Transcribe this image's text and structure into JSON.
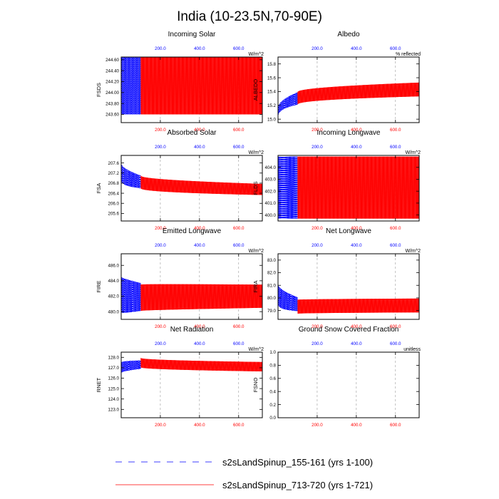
{
  "figure": {
    "title": "India (10-23.5N,70-90E)",
    "colors": {
      "series_a": "#0000ff",
      "series_b": "#ff0000",
      "axis": "#000000",
      "grid": "#999999"
    },
    "top_axis_ticks": [
      "200.0",
      "400.0",
      "600.0"
    ],
    "bottom_axis_ticks": [
      "200.0",
      "400.0",
      "600.0"
    ]
  },
  "legend": [
    {
      "label": "s2sLandSpinup_155-161 (yrs 1-100)",
      "color": "#0000ff",
      "style": "dashed"
    },
    {
      "label": "s2sLandSpinup_713-720 (yrs 1-721)",
      "color": "#ff0000",
      "style": "solid"
    }
  ],
  "chart_data": [
    {
      "type": "line",
      "id": "fsds",
      "title": "Incoming Solar",
      "ylabel": "FSDS",
      "units": "W/m^2",
      "xlim": [
        0,
        721
      ],
      "ylim": [
        243.45,
        244.65
      ],
      "yticks": [
        "244.60",
        "244.40",
        "244.20",
        "244.00",
        "243.80",
        "243.60"
      ],
      "series": [
        {
          "name": "s2sLandSpinup_155-161 (yrs 1-100)",
          "x_range": [
            1,
            100
          ],
          "mean": [
            244.15,
            244.15
          ],
          "amplitude": [
            0.55,
            0.55
          ]
        },
        {
          "name": "s2sLandSpinup_713-720 (yrs 1-721)",
          "x_range": [
            100,
            721
          ],
          "mean": [
            244.15,
            244.15
          ],
          "amplitude": [
            0.55,
            0.55
          ]
        }
      ]
    },
    {
      "type": "line",
      "id": "albedo",
      "title": "Albedo",
      "ylabel": "ALBEDO",
      "units": "% reflected",
      "xlim": [
        0,
        721
      ],
      "ylim": [
        14.95,
        15.9
      ],
      "yticks": [
        "15.8",
        "15.6",
        "15.4",
        "15.2",
        "15.0"
      ],
      "series": [
        {
          "name": "s2sLandSpinup_155-161 (yrs 1-100)",
          "x_range": [
            1,
            100
          ],
          "mean": [
            15.1,
            15.3
          ],
          "amplitude": [
            0.06,
            0.09
          ]
        },
        {
          "name": "s2sLandSpinup_713-720 (yrs 1-721)",
          "x_range": [
            100,
            721
          ],
          "mean": [
            15.3,
            15.43
          ],
          "amplitude": [
            0.09,
            0.1
          ]
        }
      ]
    },
    {
      "type": "line",
      "id": "fsa",
      "title": "Absorbed Solar",
      "ylabel": "FSA",
      "units": "W/m^2",
      "xlim": [
        0,
        721
      ],
      "ylim": [
        205.3,
        207.9
      ],
      "yticks": [
        "207.6",
        "207.2",
        "206.8",
        "206.4",
        "206.0",
        "205.6"
      ],
      "series": [
        {
          "name": "s2sLandSpinup_155-161 (yrs 1-100)",
          "x_range": [
            1,
            100
          ],
          "mean": [
            207.25,
            206.85
          ],
          "amplitude": [
            0.35,
            0.25
          ]
        },
        {
          "name": "s2sLandSpinup_713-720 (yrs 1-721)",
          "x_range": [
            100,
            721
          ],
          "mean": [
            206.85,
            206.55
          ],
          "amplitude": [
            0.25,
            0.22
          ]
        }
      ]
    },
    {
      "type": "line",
      "id": "flds",
      "title": "Incoming Longwave",
      "ylabel": "FLDS",
      "units": "W/m^2",
      "xlim": [
        0,
        721
      ],
      "ylim": [
        399.5,
        405.0
      ],
      "yticks": [
        "404.0",
        "403.0",
        "402.0",
        "401.0",
        "400.0"
      ],
      "series": [
        {
          "name": "s2sLandSpinup_155-161 (yrs 1-100)",
          "x_range": [
            1,
            100
          ],
          "mean": [
            402.3,
            402.3
          ],
          "amplitude": [
            2.6,
            2.6
          ]
        },
        {
          "name": "s2sLandSpinup_713-720 (yrs 1-721)",
          "x_range": [
            100,
            721
          ],
          "mean": [
            402.3,
            402.3
          ],
          "amplitude": [
            2.6,
            2.6
          ]
        }
      ]
    },
    {
      "type": "line",
      "id": "fire",
      "title": "Emitted Longwave",
      "ylabel": "FIRE",
      "units": "W/m^2",
      "xlim": [
        0,
        721
      ],
      "ylim": [
        479.0,
        487.5
      ],
      "yticks": [
        "486.0",
        "484.0",
        "482.0",
        "480.0"
      ],
      "series": [
        {
          "name": "s2sLandSpinup_155-161 (yrs 1-100)",
          "x_range": [
            1,
            100
          ],
          "mean": [
            482.2,
            481.9
          ],
          "amplitude": [
            2.3,
            1.8
          ]
        },
        {
          "name": "s2sLandSpinup_713-720 (yrs 1-721)",
          "x_range": [
            100,
            721
          ],
          "mean": [
            481.8,
            482.0
          ],
          "amplitude": [
            1.7,
            1.5
          ]
        }
      ]
    },
    {
      "type": "line",
      "id": "fira",
      "title": "Net Longwave",
      "ylabel": "FIRA",
      "units": "W/m^2",
      "xlim": [
        0,
        721
      ],
      "ylim": [
        78.3,
        83.5
      ],
      "yticks": [
        "83.0",
        "82.0",
        "81.0",
        "80.0",
        "79.0"
      ],
      "series": [
        {
          "name": "s2sLandSpinup_155-161 (yrs 1-100)",
          "x_range": [
            1,
            100
          ],
          "mean": [
            80.3,
            79.5
          ],
          "amplitude": [
            0.8,
            0.55
          ]
        },
        {
          "name": "s2sLandSpinup_713-720 (yrs 1-721)",
          "x_range": [
            100,
            721
          ],
          "mean": [
            79.3,
            79.4
          ],
          "amplitude": [
            0.55,
            0.55
          ]
        }
      ]
    },
    {
      "type": "line",
      "id": "rnet",
      "title": "Net Radiation",
      "ylabel": "RNET",
      "units": "W/m^2",
      "xlim": [
        0,
        721
      ],
      "ylim": [
        122.2,
        128.5
      ],
      "yticks": [
        "128.0",
        "127.0",
        "126.0",
        "125.0",
        "124.0",
        "123.0"
      ],
      "series": [
        {
          "name": "s2sLandSpinup_155-161 (yrs 1-100)",
          "x_range": [
            1,
            100
          ],
          "mean": [
            127.0,
            127.3
          ],
          "amplitude": [
            0.5,
            0.4
          ]
        },
        {
          "name": "s2sLandSpinup_713-720 (yrs 1-721)",
          "x_range": [
            100,
            721
          ],
          "mean": [
            127.5,
            127.1
          ],
          "amplitude": [
            0.45,
            0.45
          ]
        }
      ]
    },
    {
      "type": "line",
      "id": "fsno",
      "title": "Ground Snow Covered Fraction",
      "ylabel": "FSNO",
      "units": "unitless",
      "xlim": [
        0,
        721
      ],
      "ylim": [
        0,
        1.0
      ],
      "yticks": [
        "1.0",
        "0.8",
        "0.6",
        "0.4",
        "0.2",
        "0.0"
      ],
      "series": [
        {
          "name": "s2sLandSpinup_155-161 (yrs 1-100)",
          "x_range": [
            1,
            100
          ],
          "mean": [
            0,
            0
          ],
          "amplitude": [
            0,
            0
          ]
        },
        {
          "name": "s2sLandSpinup_713-720 (yrs 1-721)",
          "x_range": [
            100,
            721
          ],
          "mean": [
            0,
            0
          ],
          "amplitude": [
            0,
            0
          ]
        }
      ]
    }
  ]
}
